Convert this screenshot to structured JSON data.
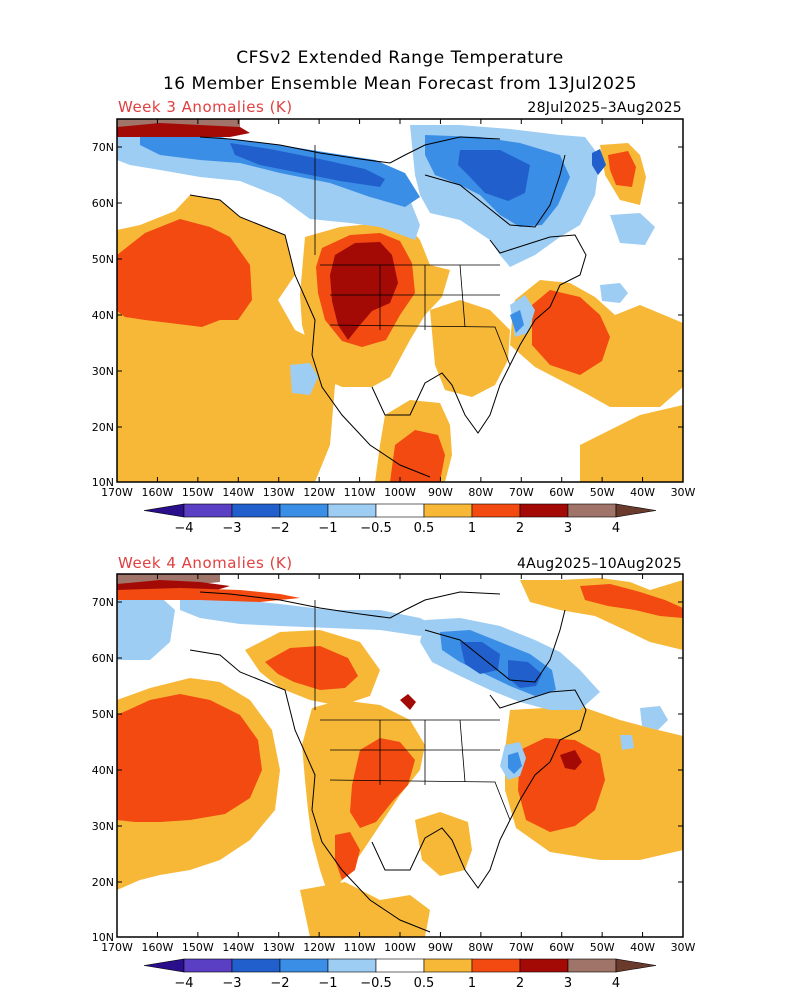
{
  "title_line1": "CFSv2 Extended Range Temperature",
  "title_line2": "16 Member Ensemble Mean Forecast from 13Jul2025",
  "panels": [
    {
      "label": "Week 3 Anomalies (K)",
      "dates": "28Jul2025–3Aug2025"
    },
    {
      "label": "Week 4 Anomalies (K)",
      "dates": "4Aug2025–10Aug2025"
    }
  ],
  "lat_labels": [
    "70N",
    "60N",
    "50N",
    "40N",
    "30N",
    "20N",
    "10N"
  ],
  "lon_labels": [
    "170W",
    "160W",
    "150W",
    "140W",
    "130W",
    "120W",
    "110W",
    "100W",
    "90W",
    "80W",
    "70W",
    "60W",
    "50W",
    "40W",
    "30W"
  ],
  "colorbar": {
    "tick_labels": [
      "−4",
      "−3",
      "−2",
      "−1",
      "−0.5",
      "0.5",
      "1",
      "2",
      "3",
      "4"
    ],
    "colors": [
      "#2a0e8c",
      "#5a3fc4",
      "#2160cc",
      "#3b8ee6",
      "#9ecdf4",
      "#ffffff",
      "#f7b838",
      "#f24a10",
      "#a30a06",
      "#a07468",
      "#6a3a2c"
    ]
  }
}
